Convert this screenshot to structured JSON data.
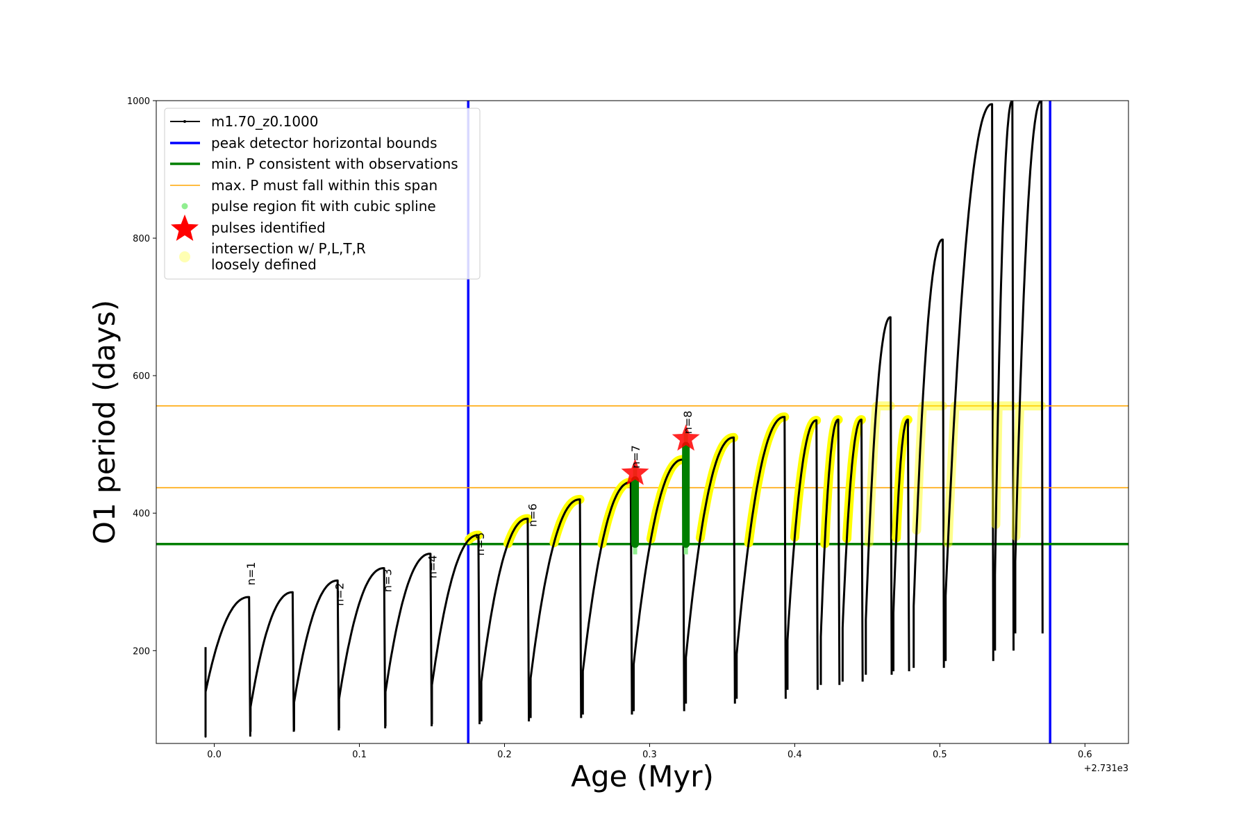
{
  "chart_data": {
    "type": "line",
    "xlabel": "Age (Myr)",
    "ylabel": "O1 period (days)",
    "x_offset_label": "+2.731e3",
    "xlim": [
      -0.04,
      0.63
    ],
    "ylim": [
      65,
      1000
    ],
    "xticks": [
      0.0,
      0.1,
      0.2,
      0.3,
      0.4,
      0.5,
      0.6
    ],
    "xtick_labels": [
      "0.0",
      "0.1",
      "0.2",
      "0.3",
      "0.4",
      "0.5",
      "0.6"
    ],
    "yticks": [
      200,
      400,
      600,
      800,
      1000
    ],
    "ytick_labels": [
      "200",
      "400",
      "600",
      "800",
      "1000"
    ],
    "legend": {
      "placement": "upper-left",
      "entries": [
        {
          "label": "m1.70_z0.1000",
          "marker": "line-dot",
          "color": "#000000"
        },
        {
          "label": "peak detector horizontal bounds",
          "marker": "line",
          "color": "#0000ff"
        },
        {
          "label": "min. P consistent with observations",
          "marker": "line",
          "color": "#007f00"
        },
        {
          "label": "max. P must fall within this span",
          "marker": "line",
          "color": "#ffa500"
        },
        {
          "label": "pulse region fit with cubic spline",
          "marker": "dot",
          "color": "#90ee90"
        },
        {
          "label": "pulses identified",
          "marker": "star",
          "color": "#ff0000"
        },
        {
          "label": "intersection w/ P,L,T,R",
          "label2": "loosely defined",
          "marker": "dot",
          "color": "#ffffb3"
        }
      ]
    },
    "vertical_lines": [
      {
        "x": 0.175,
        "color": "#0000ff"
      },
      {
        "x": 0.576,
        "color": "#0000ff"
      }
    ],
    "horizontal_lines": [
      {
        "y": 355,
        "color": "#007f00"
      },
      {
        "y": 437,
        "color": "#ffa500"
      },
      {
        "y": 556,
        "color": "#ffa500"
      }
    ],
    "pulse_cycles": [
      {
        "start": -0.006,
        "end": 0.024,
        "low": 140,
        "peak": 278,
        "min": 75,
        "spike": 205
      },
      {
        "start": 0.025,
        "end": 0.054,
        "low": 118,
        "peak": 285,
        "min": 82
      },
      {
        "start": 0.055,
        "end": 0.085,
        "low": 125,
        "peak": 302,
        "min": 84
      },
      {
        "start": 0.086,
        "end": 0.117,
        "low": 130,
        "peak": 320,
        "min": 87
      },
      {
        "start": 0.118,
        "end": 0.149,
        "low": 140,
        "peak": 341,
        "min": 90
      },
      {
        "start": 0.15,
        "end": 0.182,
        "low": 150,
        "peak": 368,
        "min": 93
      },
      {
        "start": 0.184,
        "end": 0.216,
        "low": 155,
        "peak": 392,
        "min": 97
      },
      {
        "start": 0.218,
        "end": 0.252,
        "low": 160,
        "peak": 420,
        "min": 102
      },
      {
        "start": 0.254,
        "end": 0.287,
        "low": 170,
        "peak": 445,
        "min": 107
      },
      {
        "start": 0.289,
        "end": 0.323,
        "low": 180,
        "peak": 478,
        "min": 112
      },
      {
        "start": 0.325,
        "end": 0.358,
        "low": 190,
        "peak": 510,
        "min": 123
      },
      {
        "start": 0.36,
        "end": 0.393,
        "low": 195,
        "peak": 540,
        "min": 130
      },
      {
        "start": 0.395,
        "end": 0.415,
        "low": 215,
        "peak": 535,
        "min": 143
      },
      {
        "start": 0.418,
        "end": 0.43,
        "low": 220,
        "peak": 536,
        "min": 150
      },
      {
        "start": 0.433,
        "end": 0.446,
        "low": 233,
        "peak": 536,
        "min": 155
      },
      {
        "start": 0.449,
        "end": 0.466,
        "low": 245,
        "peak": 685,
        "min": 165
      },
      {
        "start": 0.468,
        "end": 0.478,
        "low": 255,
        "peak": 536,
        "min": 170
      },
      {
        "start": 0.482,
        "end": 0.502,
        "low": 265,
        "peak": 798,
        "min": 175
      },
      {
        "start": 0.504,
        "end": 0.536,
        "low": 280,
        "peak": 995,
        "min": 185
      },
      {
        "start": 0.538,
        "end": 0.55,
        "low": 310,
        "peak": 1000,
        "min": 200
      },
      {
        "start": 0.552,
        "end": 0.57,
        "low": 330,
        "peak": 1000,
        "min": 225
      }
    ],
    "pulses_identified": [
      {
        "n": 7,
        "x": 0.29,
        "y": 458
      },
      {
        "n": 8,
        "x": 0.325,
        "y": 508
      }
    ],
    "annotations": [
      {
        "text": "n=1",
        "x": 0.028,
        "y": 295
      },
      {
        "text": "n=2",
        "x": 0.089,
        "y": 265
      },
      {
        "text": "n=3",
        "x": 0.122,
        "y": 285
      },
      {
        "text": "n=4",
        "x": 0.153,
        "y": 305
      },
      {
        "text": "n=5",
        "x": 0.186,
        "y": 338
      },
      {
        "text": "n=6",
        "x": 0.222,
        "y": 380
      },
      {
        "text": "n=7",
        "x": 0.293,
        "y": 465
      },
      {
        "text": "n=8",
        "x": 0.329,
        "y": 515
      }
    ]
  }
}
